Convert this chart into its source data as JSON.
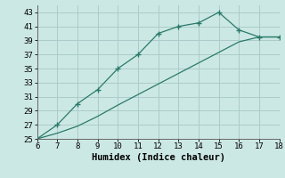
{
  "xlabel": "Humidex (Indice chaleur)",
  "x_values": [
    6,
    7,
    8,
    9,
    10,
    11,
    12,
    13,
    14,
    15,
    16,
    17,
    18
  ],
  "line1_y": [
    25,
    27,
    30,
    32,
    35,
    37,
    40,
    41,
    41.5,
    43,
    40.5,
    39.5,
    39.5
  ],
  "line2_y": [
    25,
    25.8,
    26.8,
    28.2,
    29.8,
    31.3,
    32.8,
    34.3,
    35.8,
    37.3,
    38.8,
    39.5,
    39.5
  ],
  "line_color": "#2a7a6a",
  "bg_color": "#cce8e4",
  "grid_color": "#aaccca",
  "xlim": [
    6,
    18
  ],
  "ylim": [
    25,
    44
  ],
  "xticks": [
    6,
    7,
    8,
    9,
    10,
    11,
    12,
    13,
    14,
    15,
    16,
    17,
    18
  ],
  "yticks": [
    25,
    27,
    29,
    31,
    33,
    35,
    37,
    39,
    41,
    43
  ],
  "tick_fontsize": 6.5,
  "xlabel_fontsize": 7.5
}
